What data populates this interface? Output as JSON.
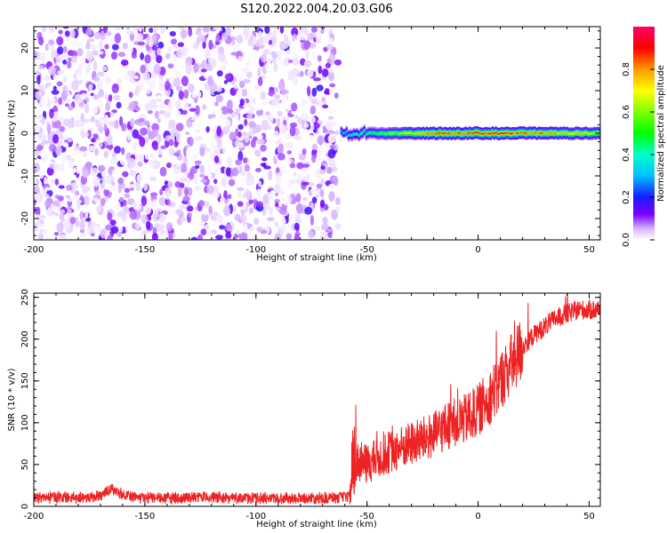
{
  "chart_data": [
    {
      "type": "heatmap",
      "title": "S120.2022.004.20.03.G06",
      "xlabel": "Height of straight line (km)",
      "ylabel": "Frequency (Hz)",
      "xlim": [
        -200,
        55
      ],
      "ylim": [
        -25,
        25
      ],
      "x_ticks": [
        -200,
        -150,
        -100,
        -50,
        0,
        50
      ],
      "y_ticks": [
        -20,
        -10,
        0,
        10,
        20
      ],
      "noise_region_x": [
        -200,
        -63
      ],
      "signal_band": {
        "frequency_hz": 0,
        "x_start": -62,
        "x_end": 55,
        "amplitude_profile": {
          "x": [
            -62,
            -55,
            -45,
            -35,
            -25,
            -18,
            -10,
            0,
            10,
            20,
            30,
            40,
            50,
            55
          ],
          "amplitude": [
            0.35,
            0.45,
            0.55,
            0.7,
            0.8,
            0.95,
            0.9,
            0.95,
            0.95,
            0.9,
            0.85,
            0.8,
            0.75,
            0.7
          ]
        }
      },
      "colorbar": {
        "label": "Normalized spectral amplitude",
        "range": [
          0,
          1
        ],
        "ticks": [
          0.0,
          0.2,
          0.4,
          0.6,
          0.8
        ]
      }
    },
    {
      "type": "line",
      "xlabel": "Height of straight line (km)",
      "ylabel": "SNR (10 * v/v)",
      "xlim": [
        -200,
        55
      ],
      "ylim": [
        0,
        255
      ],
      "x_ticks": [
        -200,
        -150,
        -100,
        -50,
        0,
        50
      ],
      "y_ticks": [
        0,
        50,
        100,
        150,
        200,
        250
      ],
      "line_color": "#ee2222",
      "series": [
        {
          "x": [
            -200,
            -190,
            -180,
            -170,
            -165,
            -160,
            -150,
            -140,
            -130,
            -120,
            -110,
            -100,
            -90,
            -80,
            -70,
            -63,
            -58,
            -56,
            -55,
            -50,
            -45,
            -40,
            -35,
            -30,
            -25,
            -20,
            -15,
            -10,
            -5,
            0,
            5,
            10,
            15,
            20,
            25,
            30,
            35,
            40,
            45,
            50,
            55
          ],
          "values": [
            10,
            11,
            10,
            12,
            22,
            14,
            10,
            10,
            10,
            11,
            10,
            10,
            10,
            10,
            10,
            10,
            12,
            25,
            55,
            50,
            58,
            65,
            70,
            75,
            80,
            85,
            95,
            100,
            105,
            115,
            130,
            150,
            170,
            190,
            205,
            215,
            225,
            230,
            235,
            235,
            235
          ]
        }
      ]
    }
  ]
}
